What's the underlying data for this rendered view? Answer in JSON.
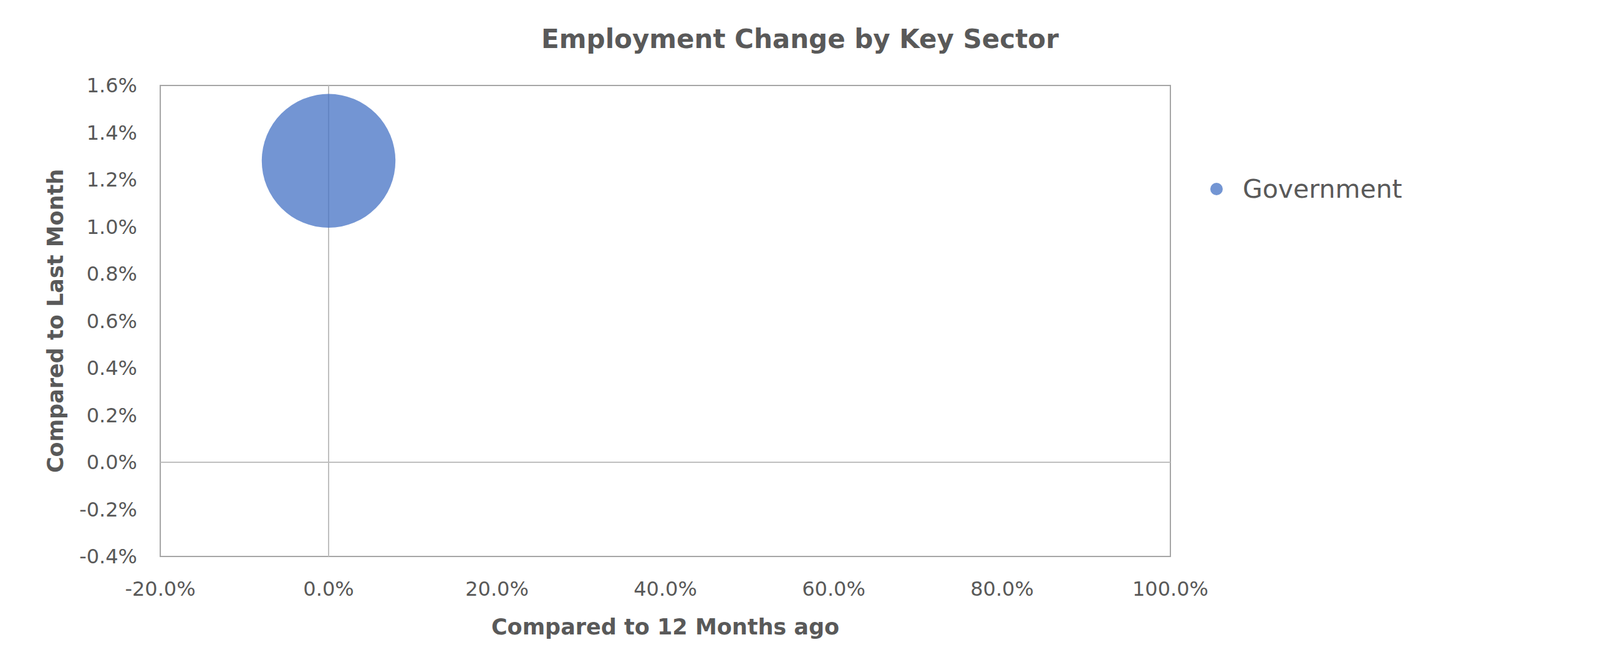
{
  "chart_data": {
    "type": "bubble",
    "title": "Employment Change by Key Sector",
    "x_label": "Compared to 12 Months ago",
    "y_label": "Compared to Last Month",
    "series": [
      {
        "name": "Government",
        "color": "#4472c4",
        "x": [
          0.0
        ],
        "values": [
          1.28
        ],
        "sizes": [
          1
        ]
      }
    ],
    "xlim": [
      -20,
      100
    ],
    "xticks": [
      {
        "value": -20,
        "label": "-20.0%"
      },
      {
        "value": 0,
        "label": "0.0%"
      },
      {
        "value": 20,
        "label": "20.0%"
      },
      {
        "value": 40,
        "label": "40.0%"
      },
      {
        "value": 60,
        "label": "60.0%"
      },
      {
        "value": 80,
        "label": "80.0%"
      },
      {
        "value": 100,
        "label": "100.0%"
      }
    ],
    "ylim": [
      -0.4,
      1.6
    ],
    "yticks": [
      {
        "value": -0.4,
        "label": "-0.4%"
      },
      {
        "value": -0.2,
        "label": "-0.2%"
      },
      {
        "value": 0,
        "label": "0.0%"
      },
      {
        "value": 0.2,
        "label": "0.2%"
      },
      {
        "value": 0.4,
        "label": "0.4%"
      },
      {
        "value": 0.6,
        "label": "0.6%"
      },
      {
        "value": 0.8,
        "label": "0.8%"
      },
      {
        "value": 1.0,
        "label": "1.0%"
      },
      {
        "value": 1.2,
        "label": "1.2%"
      },
      {
        "value": 1.4,
        "label": "1.4%"
      },
      {
        "value": 1.6,
        "label": "1.6%"
      }
    ],
    "grid": false,
    "legend": "right"
  }
}
